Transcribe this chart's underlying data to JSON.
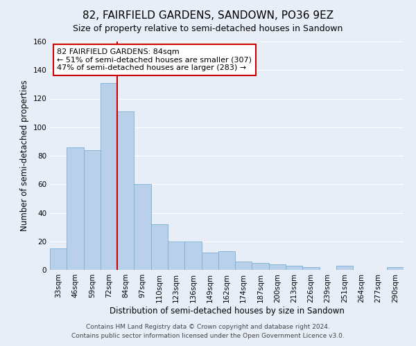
{
  "title": "82, FAIRFIELD GARDENS, SANDOWN, PO36 9EZ",
  "subtitle": "Size of property relative to semi-detached houses in Sandown",
  "xlabel": "Distribution of semi-detached houses by size in Sandown",
  "ylabel": "Number of semi-detached properties",
  "footer_line1": "Contains HM Land Registry data © Crown copyright and database right 2024.",
  "footer_line2": "Contains public sector information licensed under the Open Government Licence v3.0.",
  "bar_labels": [
    "33sqm",
    "46sqm",
    "59sqm",
    "72sqm",
    "84sqm",
    "97sqm",
    "110sqm",
    "123sqm",
    "136sqm",
    "149sqm",
    "162sqm",
    "174sqm",
    "187sqm",
    "200sqm",
    "213sqm",
    "226sqm",
    "239sqm",
    "251sqm",
    "264sqm",
    "277sqm",
    "290sqm"
  ],
  "bar_values": [
    15,
    86,
    84,
    131,
    111,
    60,
    32,
    20,
    20,
    12,
    13,
    6,
    5,
    4,
    3,
    2,
    0,
    3,
    0,
    0,
    2
  ],
  "bar_color": "#b8d0ea",
  "bar_edge_color": "#7bafd4",
  "property_line_color": "#cc0000",
  "annotation_title": "82 FAIRFIELD GARDENS: 84sqm",
  "annotation_line1": "← 51% of semi-detached houses are smaller (307)",
  "annotation_line2": "47% of semi-detached houses are larger (283) →",
  "annotation_box_color": "#ffffff",
  "annotation_box_edge_color": "#cc0000",
  "ylim": [
    0,
    160
  ],
  "yticks": [
    0,
    20,
    40,
    60,
    80,
    100,
    120,
    140,
    160
  ],
  "background_color": "#e8eef8",
  "grid_color": "#ffffff",
  "title_fontsize": 11,
  "subtitle_fontsize": 9,
  "axis_label_fontsize": 8.5,
  "tick_fontsize": 7.5,
  "annotation_fontsize": 8,
  "footer_fontsize": 6.5
}
